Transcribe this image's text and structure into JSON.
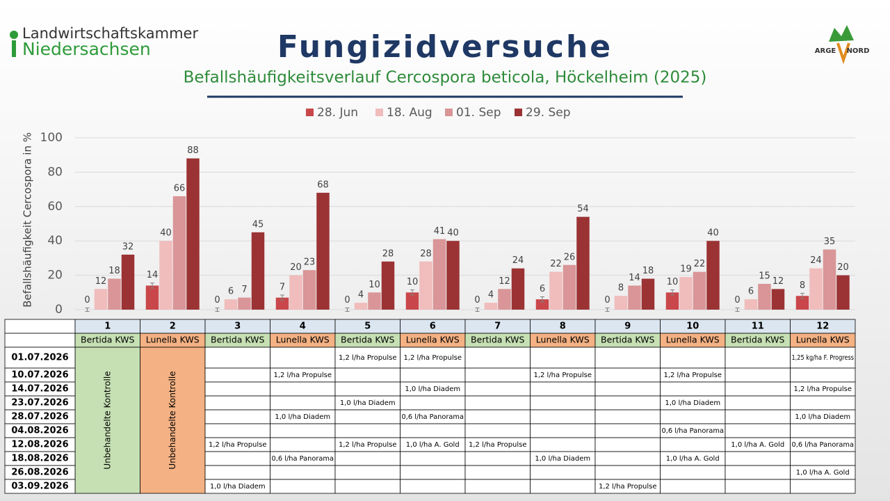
{
  "header": {
    "title": "Fungizidversuche",
    "logo_left": [
      "Landwirtschaftskammer",
      "Niedersachsen"
    ],
    "logo_right": [
      "ARGE",
      "NORD"
    ]
  },
  "chart_data": {
    "type": "bar",
    "title": "Befallshäufigkeitsverlauf Cercospora beticola, Höckelheim (2025)",
    "y_label": "Befallshäufigkeit Cercospora in %",
    "categories": [
      "1",
      "2",
      "3",
      "4",
      "5",
      "6",
      "7",
      "8",
      "9",
      "10",
      "11",
      "12"
    ],
    "series": [
      {
        "name": "28. Jun",
        "color": "#c9474a",
        "values": [
          0,
          14,
          0,
          7,
          0,
          10,
          0,
          6,
          0,
          10,
          0,
          8
        ],
        "errors": [
          1,
          1.5,
          1,
          1.5,
          1,
          1.5,
          1,
          1.5,
          1,
          1.5,
          1,
          1.5
        ]
      },
      {
        "name": "18. Aug",
        "color": "#f0bcbc",
        "values": [
          12,
          40,
          6,
          20,
          4,
          28,
          4,
          22,
          8,
          19,
          6,
          24
        ]
      },
      {
        "name": "01. Sep",
        "color": "#d99597",
        "values": [
          18,
          66,
          7,
          23,
          10,
          41,
          12,
          26,
          14,
          22,
          15,
          35
        ]
      },
      {
        "name": "29. Sep",
        "color": "#9b3335",
        "values": [
          32,
          88,
          45,
          68,
          28,
          40,
          24,
          54,
          18,
          40,
          12,
          20
        ]
      }
    ],
    "ylim": [
      0,
      100
    ],
    "yticks": [
      0,
      20,
      40,
      60,
      80,
      100
    ],
    "grid": true,
    "legend": "top"
  },
  "table": {
    "varieties": [
      "Bertida KWS",
      "Lunella KWS",
      "Bertida KWS",
      "Lunella KWS",
      "Bertida KWS",
      "Lunella KWS",
      "Bertida KWS",
      "Lunella KWS",
      "Bertida KWS",
      "Lunella KWS",
      "Bertida KWS",
      "Lunella KWS"
    ],
    "control": [
      "Unbehandelte Kontrolle",
      "Unbehandelte Kontrolle"
    ],
    "rows": [
      {
        "date": "01.07.2026",
        "cells": [
          null,
          null,
          "1,2 l/ha Propulse",
          "1,2 l/ha Propulse",
          null,
          null,
          null,
          null,
          null,
          "1,25 kg/ha F. Progress"
        ]
      },
      {
        "date": "10.07.2026",
        "cells": [
          null,
          "1,2 l/ha Propulse",
          null,
          null,
          null,
          "1,2 l/ha Propulse",
          null,
          "1,2 l/ha Propulse",
          null,
          null
        ]
      },
      {
        "date": "14.07.2026",
        "cells": [
          null,
          null,
          null,
          "1,0 l/ha Diadem",
          null,
          null,
          null,
          null,
          null,
          "1,2 l/ha Propulse"
        ]
      },
      {
        "date": "23.07.2026",
        "cells": [
          null,
          null,
          "1,0 l/ha Diadem",
          null,
          null,
          null,
          null,
          "1,0 l/ha Diadem",
          null,
          null
        ]
      },
      {
        "date": "28.07.2026",
        "cells": [
          null,
          "1,0 l/ha Diadem",
          null,
          "0,6 l/ha Panorama",
          null,
          null,
          null,
          null,
          null,
          "1,0 l/ha Diadem"
        ]
      },
      {
        "date": "04.08.2026",
        "cells": [
          null,
          null,
          null,
          null,
          null,
          null,
          null,
          "0,6 l/ha Panorama",
          null,
          null
        ]
      },
      {
        "date": "12.08.2026",
        "cells": [
          "1,2 l/ha Propulse",
          null,
          "1,2 l/ha Propulse",
          "1,0 l/ha A. Gold",
          "1,2 l/ha Propulse",
          null,
          null,
          null,
          "1,0 l/ha A. Gold",
          "0,6 l/ha Panorama"
        ]
      },
      {
        "date": "18.08.2026",
        "cells": [
          null,
          "0,6 l/ha Panorama",
          null,
          null,
          null,
          "1,0 l/ha Diadem",
          null,
          "1,0 l/ha A. Gold",
          null,
          null
        ]
      },
      {
        "date": "26.08.2026",
        "cells": [
          null,
          null,
          null,
          null,
          null,
          null,
          null,
          null,
          null,
          "1,0 l/ha A. Gold"
        ]
      },
      {
        "date": "03.09.2026",
        "cells": [
          "1,0 l/ha Diadem",
          null,
          null,
          null,
          null,
          null,
          "1,2 l/ha Propulse",
          null,
          null,
          null
        ]
      }
    ]
  }
}
